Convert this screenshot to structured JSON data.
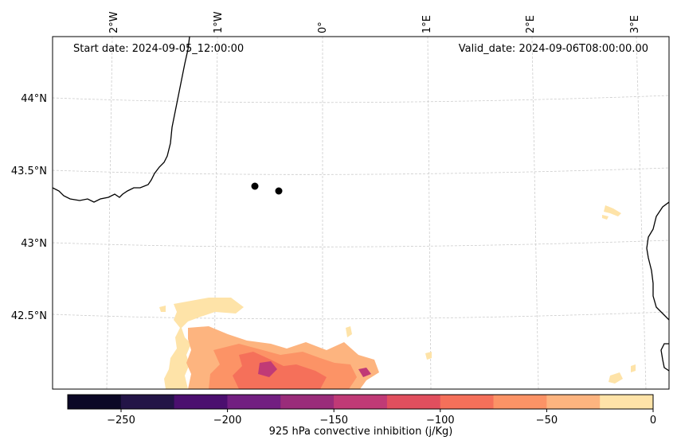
{
  "map": {
    "start_date": "Start date: 2024-09-05_12:00:00",
    "valid_date": "Valid_date: 2024-09-06T08:00:00.00",
    "lon_labels": [
      "2°W",
      "1°W",
      "0°",
      "1°E",
      "2°E",
      "3°E"
    ],
    "lat_labels": [
      "44°N",
      "43.5°N",
      "43°N",
      "42.5°N"
    ],
    "colorbar": {
      "label": "925 hPa convective inhibition (j/Kg)",
      "ticks": [
        "−250",
        "−200",
        "−150",
        "−100",
        "−50",
        "0"
      ],
      "colors": [
        "#0b0826",
        "#231447",
        "#4b0f6f",
        "#721f81",
        "#9a2c7a",
        "#c03a76",
        "#e14f5e",
        "#f5705a",
        "#fc9366",
        "#fdb47f",
        "#fee3a8"
      ]
    },
    "colors": {
      "field_light": "#fee3a8",
      "field_mid": "#fdb47f",
      "field_orange": "#fc9366",
      "field_red": "#f5705a",
      "field_dark": "#c03a76",
      "marker": "#000000",
      "gridline": "#cccccc"
    }
  }
}
